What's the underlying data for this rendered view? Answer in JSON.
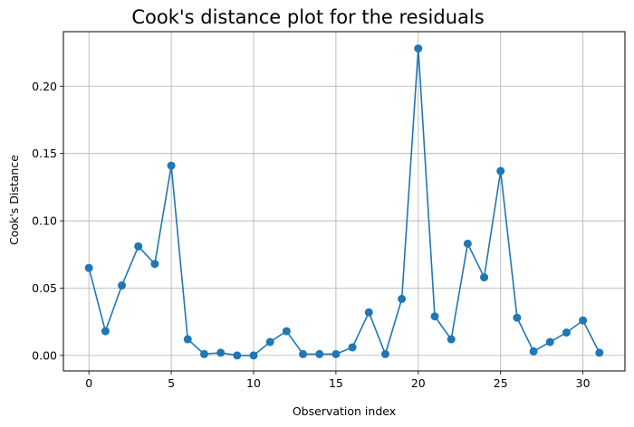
{
  "chart_data": {
    "type": "line",
    "title": "Cook's distance plot for the residuals",
    "xlabel": "Observation index",
    "ylabel": "Cook's Distance",
    "xlim": [
      -1.55,
      32.55
    ],
    "ylim": [
      -0.0115,
      0.2405
    ],
    "xticks": [
      0,
      5,
      10,
      15,
      20,
      25,
      30
    ],
    "yticks": [
      0.0,
      0.05,
      0.1,
      0.15,
      0.2
    ],
    "ytick_labels": [
      "0.00",
      "0.05",
      "0.10",
      "0.15",
      "0.20"
    ],
    "grid": true,
    "color": "#1f77b4",
    "marker": "circle",
    "series": [
      {
        "x": [
          0,
          1,
          2,
          3,
          4,
          5,
          6,
          7,
          8,
          9,
          10,
          11,
          12,
          13,
          14,
          15,
          16,
          17,
          18,
          19,
          20,
          21,
          22,
          23,
          24,
          25,
          26,
          27,
          28,
          29,
          30,
          31
        ],
        "values": [
          0.065,
          0.018,
          0.052,
          0.081,
          0.068,
          0.141,
          0.012,
          0.001,
          0.002,
          0.0,
          0.0,
          0.01,
          0.018,
          0.001,
          0.001,
          0.001,
          0.006,
          0.032,
          0.001,
          0.042,
          0.228,
          0.029,
          0.012,
          0.083,
          0.058,
          0.137,
          0.028,
          0.003,
          0.01,
          0.017,
          0.026,
          0.002
        ]
      }
    ]
  }
}
